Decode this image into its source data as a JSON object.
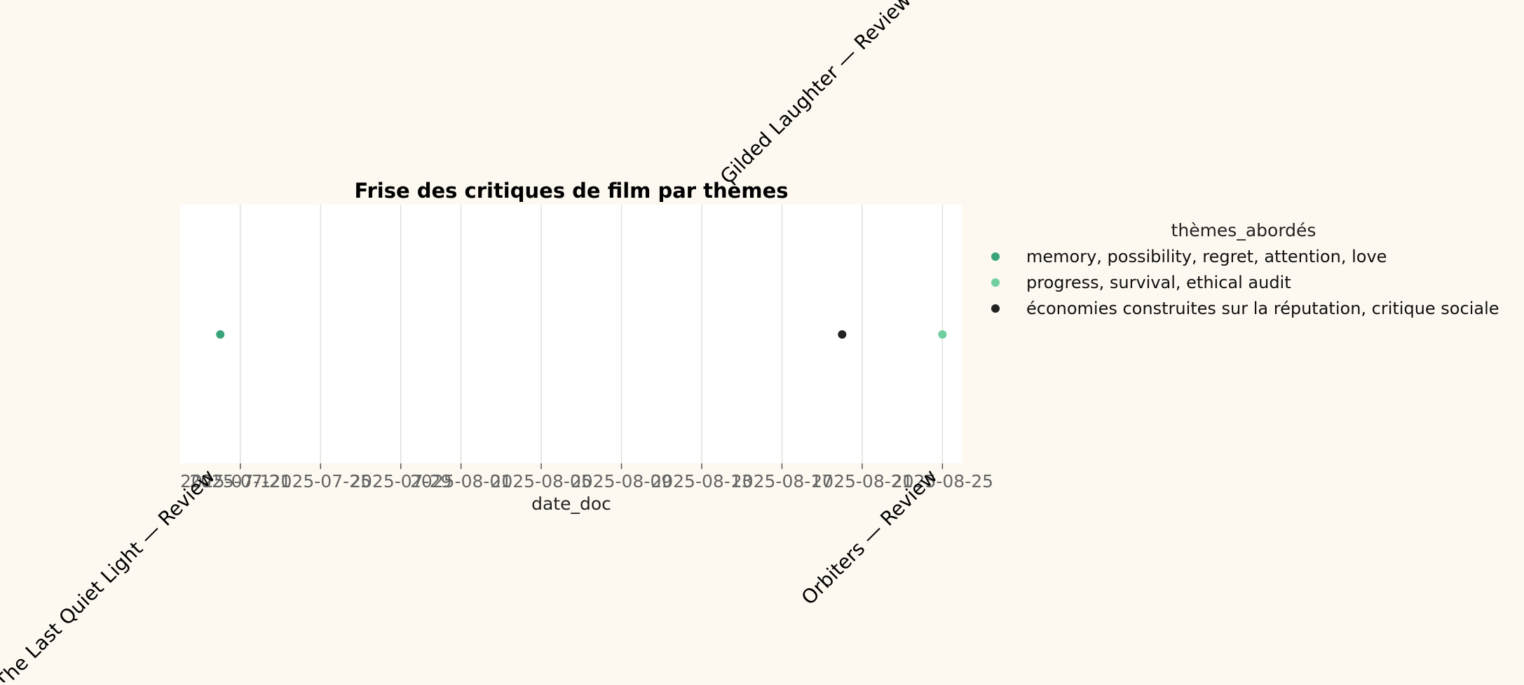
{
  "chart_data": {
    "type": "scatter",
    "title": "Frise des critiques de film par thèmes",
    "xlabel": "date_doc",
    "ylabel": "",
    "x_axis_type": "date",
    "xlim": [
      "2025-07-18",
      "2025-08-26"
    ],
    "x_ticks": [
      "2025-07-21",
      "2025-07-25",
      "2025-07-29",
      "2025-08-01",
      "2025-08-05",
      "2025-08-09",
      "2025-08-13",
      "2025-08-17",
      "2025-08-21",
      "2025-08-25"
    ],
    "x_tick_labels": [
      "2025-07-21",
      "2025-07-25",
      "2025-07-29",
      "2025-08-01",
      "2025-08-05",
      "2025-08-09",
      "2025-08-13",
      "2025-08-17",
      "2025-08-21",
      "2025-08-25"
    ],
    "overlapping_tick_label": "2025-07-1",
    "grid": "vertical",
    "legend": {
      "title": "thèmes_abordés",
      "placement": "right"
    },
    "series": [
      {
        "name": "memory, possibility, regret, attention, love",
        "color": "#3aa57a",
        "points": [
          {
            "x": "2025-07-20",
            "label": "The Last Quiet Light — Review",
            "label_side": "below"
          }
        ]
      },
      {
        "name": "progress, survival, ethical audit",
        "color": "#6fcf9f",
        "points": [
          {
            "x": "2025-08-25",
            "label": "Orbiters — Review",
            "label_side": "below"
          }
        ]
      },
      {
        "name": "économies construites sur la réputation, critique sociale",
        "color": "#222222",
        "points": [
          {
            "x": "2025-08-20",
            "label": "Gilded Laughter — Review",
            "label_side": "above"
          }
        ]
      }
    ]
  }
}
